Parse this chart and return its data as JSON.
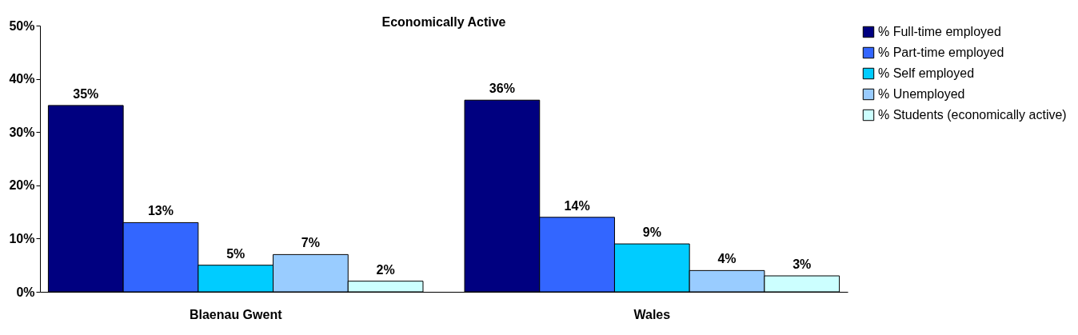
{
  "chart_data": {
    "type": "bar",
    "title": "Economically Active",
    "categories": [
      "Blaenau Gwent",
      "Wales"
    ],
    "series": [
      {
        "name": "% Full-time employed",
        "color": "#000080",
        "values": [
          35,
          36
        ],
        "value_labels": [
          "35%",
          "36%"
        ]
      },
      {
        "name": "% Part-time employed",
        "color": "#3366ff",
        "values": [
          13,
          14
        ],
        "value_labels": [
          "13%",
          "14%"
        ]
      },
      {
        "name": "% Self employed",
        "color": "#00ccff",
        "values": [
          5,
          9
        ],
        "value_labels": [
          "5%",
          "9%"
        ]
      },
      {
        "name": "% Unemployed",
        "color": "#99ccff",
        "values": [
          7,
          4
        ],
        "value_labels": [
          "7%",
          "4%"
        ]
      },
      {
        "name": "% Students (economically active)",
        "color": "#ccffff",
        "values": [
          2,
          3
        ],
        "value_labels": [
          "2%",
          "3%"
        ]
      }
    ],
    "ylim": [
      0,
      50
    ],
    "yticks": [
      {
        "value": 0,
        "label": "0%"
      },
      {
        "value": 10,
        "label": "10%"
      },
      {
        "value": 20,
        "label": "20%"
      },
      {
        "value": 30,
        "label": "30%"
      },
      {
        "value": 40,
        "label": "40%"
      },
      {
        "value": 50,
        "label": "50%"
      }
    ],
    "grid": false,
    "legend": "top right"
  }
}
